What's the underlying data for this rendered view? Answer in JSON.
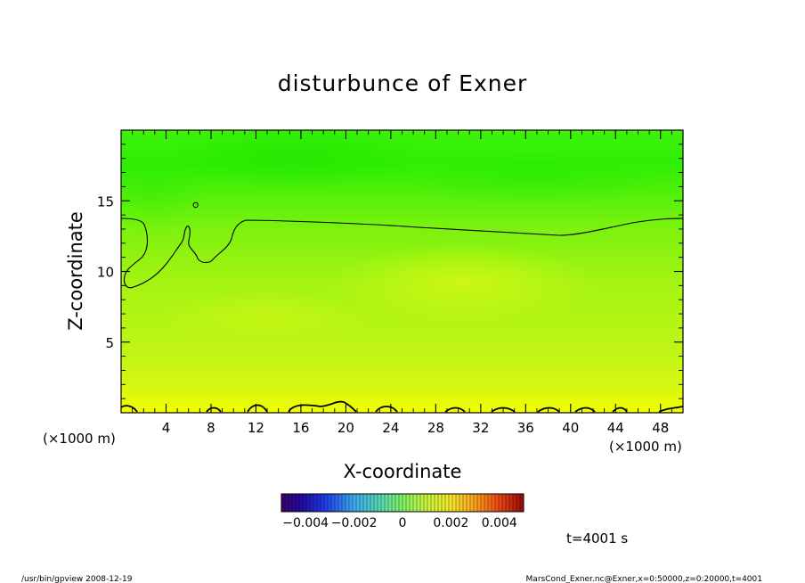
{
  "chart_data": {
    "type": "heatmap",
    "title": "disturbunce of Exner",
    "xlabel": "X-coordinate",
    "ylabel": "Z-coordinate",
    "x_unit": "(×1000 m)",
    "y_unit": "(×1000 m)",
    "xlim": [
      0,
      50
    ],
    "ylim": [
      0,
      20
    ],
    "x_ticks": [
      4,
      8,
      12,
      16,
      20,
      24,
      28,
      32,
      36,
      40,
      44,
      48
    ],
    "y_ticks": [
      5,
      10,
      15
    ],
    "colorbar": {
      "range": [
        -0.005,
        0.005
      ],
      "ticks": [
        -0.004,
        -0.002,
        0,
        0.002,
        0.004
      ],
      "tick_labels": [
        "−0.004",
        "−0.002",
        "0",
        "0.002",
        "0.004"
      ]
    },
    "time_label": "t=4001 s",
    "field_summary": "values near 0 to ~0.0015; highest near surface (z<1.5 km), lowest near z≈17 km",
    "contour_levels": [
      0
    ]
  },
  "footer": {
    "left": "/usr/bin/gpview   2008-12-19",
    "right": "MarsCond_Exner.nc@Exner,x=0:50000,z=0:20000,t=4001"
  },
  "colors": {
    "high": "#f0ff00",
    "low": "#22ee00",
    "contour": "#000000"
  }
}
